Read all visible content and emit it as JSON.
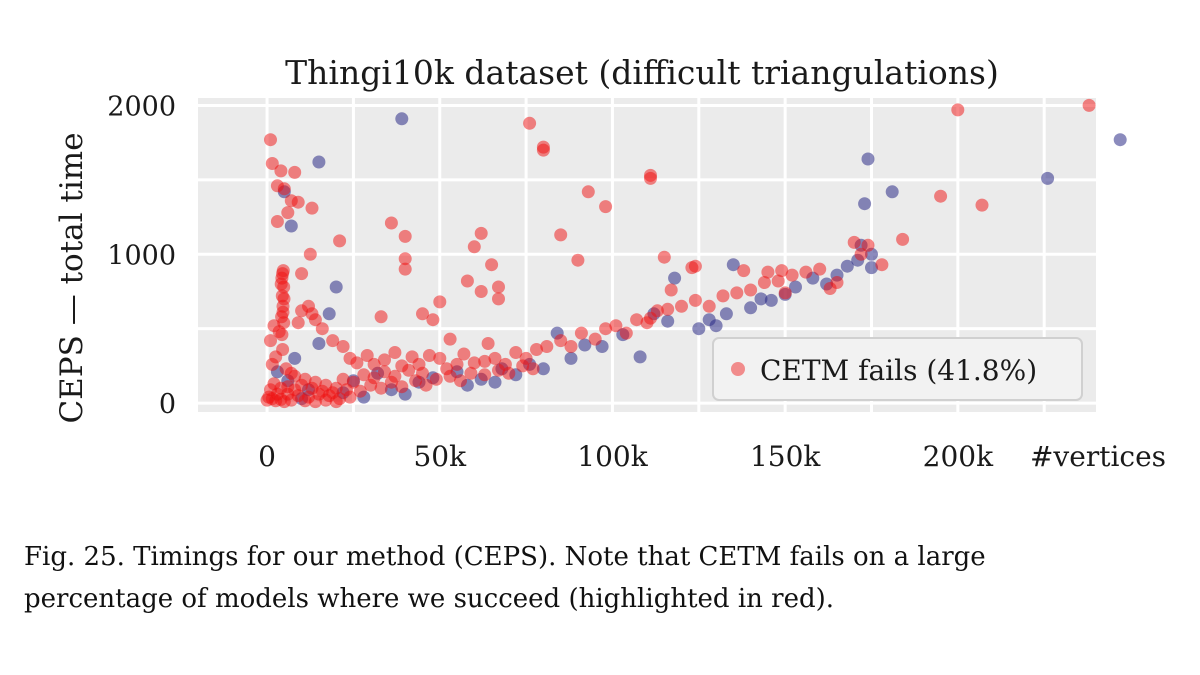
{
  "chart_data": {
    "type": "scatter",
    "title": "Thingi10k dataset (difficult triangulations)",
    "xlabel": "#vertices",
    "ylabel": "CEPS — total time",
    "xlim": [
      -20000,
      240000
    ],
    "ylim": [
      -60,
      2050
    ],
    "x_ticks": [
      {
        "value": 0,
        "label": "0"
      },
      {
        "value": 50000,
        "label": "50k"
      },
      {
        "value": 100000,
        "label": "100k"
      },
      {
        "value": 150000,
        "label": "150k"
      },
      {
        "value": 200000,
        "label": "200k"
      }
    ],
    "y_ticks": [
      {
        "value": 0,
        "label": "0"
      },
      {
        "value": 1000,
        "label": "1000"
      },
      {
        "value": 2000,
        "label": "2000"
      }
    ],
    "grid": true,
    "legend": {
      "position": "lower-right",
      "entries": [
        {
          "label": "CETM fails (41.8%)",
          "series": "CETM fails"
        }
      ]
    },
    "series": [
      {
        "name": "",
        "color": "#2c2c86",
        "points": [
          [
            39000,
            1910
          ],
          [
            15000,
            1620
          ],
          [
            7000,
            1190
          ],
          [
            20000,
            780
          ],
          [
            5000,
            1420
          ],
          [
            18000,
            600
          ],
          [
            15000,
            400
          ],
          [
            8000,
            300
          ],
          [
            3000,
            210
          ],
          [
            6000,
            150
          ],
          [
            12000,
            90
          ],
          [
            25000,
            150
          ],
          [
            32000,
            200
          ],
          [
            36000,
            90
          ],
          [
            44000,
            140
          ],
          [
            48000,
            170
          ],
          [
            55000,
            210
          ],
          [
            62000,
            160
          ],
          [
            68000,
            230
          ],
          [
            72000,
            190
          ],
          [
            76000,
            260
          ],
          [
            80000,
            230
          ],
          [
            84000,
            470
          ],
          [
            88000,
            300
          ],
          [
            92000,
            390
          ],
          [
            97000,
            380
          ],
          [
            103000,
            460
          ],
          [
            108000,
            310
          ],
          [
            112000,
            600
          ],
          [
            116000,
            550
          ],
          [
            118000,
            840
          ],
          [
            125000,
            500
          ],
          [
            128000,
            560
          ],
          [
            130000,
            520
          ],
          [
            133000,
            600
          ],
          [
            135000,
            930
          ],
          [
            140000,
            640
          ],
          [
            143000,
            700
          ],
          [
            146000,
            690
          ],
          [
            150000,
            730
          ],
          [
            153000,
            780
          ],
          [
            158000,
            840
          ],
          [
            162000,
            800
          ],
          [
            165000,
            860
          ],
          [
            168000,
            920
          ],
          [
            171000,
            960
          ],
          [
            172000,
            1060
          ],
          [
            174000,
            1640
          ],
          [
            173000,
            1340
          ],
          [
            175000,
            1000
          ],
          [
            175000,
            910
          ],
          [
            181000,
            1420
          ],
          [
            226000,
            1510
          ],
          [
            247000,
            1770
          ],
          [
            58000,
            120
          ],
          [
            66000,
            140
          ],
          [
            40000,
            60
          ],
          [
            28000,
            40
          ],
          [
            22000,
            70
          ],
          [
            10000,
            30
          ]
        ]
      },
      {
        "name": "CETM fails",
        "color": "#f01010",
        "points": [
          [
            1000,
            1770
          ],
          [
            1500,
            1610
          ],
          [
            4000,
            1560
          ],
          [
            8000,
            1550
          ],
          [
            3000,
            1460
          ],
          [
            5000,
            1440
          ],
          [
            7000,
            1360
          ],
          [
            9000,
            1350
          ],
          [
            13000,
            1310
          ],
          [
            6000,
            1280
          ],
          [
            3000,
            1220
          ],
          [
            21000,
            1090
          ],
          [
            36000,
            1210
          ],
          [
            40000,
            1120
          ],
          [
            40000,
            970
          ],
          [
            40000,
            900
          ],
          [
            33000,
            580
          ],
          [
            45000,
            600
          ],
          [
            48000,
            560
          ],
          [
            50000,
            680
          ],
          [
            53000,
            430
          ],
          [
            58000,
            820
          ],
          [
            60000,
            1050
          ],
          [
            62000,
            1140
          ],
          [
            62000,
            750
          ],
          [
            65000,
            930
          ],
          [
            67000,
            780
          ],
          [
            67000,
            700
          ],
          [
            64000,
            400
          ],
          [
            76000,
            1880
          ],
          [
            80000,
            1700
          ],
          [
            80000,
            1720
          ],
          [
            85000,
            1130
          ],
          [
            90000,
            960
          ],
          [
            93000,
            1420
          ],
          [
            98000,
            1320
          ],
          [
            111000,
            1530
          ],
          [
            111000,
            1510
          ],
          [
            111000,
            570
          ],
          [
            115000,
            980
          ],
          [
            117000,
            760
          ],
          [
            123000,
            910
          ],
          [
            124000,
            920
          ],
          [
            138000,
            890
          ],
          [
            145000,
            880
          ],
          [
            149000,
            890
          ],
          [
            150000,
            740
          ],
          [
            163000,
            770
          ],
          [
            165000,
            810
          ],
          [
            172000,
            1000
          ],
          [
            170000,
            1080
          ],
          [
            174000,
            1060
          ],
          [
            178000,
            930
          ],
          [
            184000,
            1100
          ],
          [
            195000,
            1390
          ],
          [
            200000,
            1970
          ],
          [
            207000,
            1330
          ],
          [
            238000,
            2000
          ],
          [
            9000,
            540
          ],
          [
            10000,
            620
          ],
          [
            12000,
            650
          ],
          [
            13000,
            600
          ],
          [
            14000,
            560
          ],
          [
            16000,
            500
          ],
          [
            19000,
            420
          ],
          [
            22000,
            380
          ],
          [
            24000,
            300
          ],
          [
            26000,
            270
          ],
          [
            29000,
            320
          ],
          [
            31000,
            260
          ],
          [
            34000,
            290
          ],
          [
            37000,
            340
          ],
          [
            39000,
            250
          ],
          [
            42000,
            310
          ],
          [
            44000,
            260
          ],
          [
            47000,
            320
          ],
          [
            50000,
            300
          ],
          [
            52000,
            230
          ],
          [
            55000,
            260
          ],
          [
            57000,
            330
          ],
          [
            60000,
            270
          ],
          [
            63000,
            280
          ],
          [
            66000,
            300
          ],
          [
            69000,
            260
          ],
          [
            72000,
            340
          ],
          [
            75000,
            300
          ],
          [
            78000,
            360
          ],
          [
            81000,
            380
          ],
          [
            85000,
            420
          ],
          [
            88000,
            380
          ],
          [
            91000,
            470
          ],
          [
            95000,
            430
          ],
          [
            98000,
            500
          ],
          [
            101000,
            520
          ],
          [
            104000,
            470
          ],
          [
            107000,
            560
          ],
          [
            110000,
            540
          ],
          [
            113000,
            620
          ],
          [
            116000,
            630
          ],
          [
            120000,
            650
          ],
          [
            124000,
            690
          ],
          [
            128000,
            650
          ],
          [
            132000,
            720
          ],
          [
            136000,
            740
          ],
          [
            140000,
            760
          ],
          [
            144000,
            810
          ],
          [
            148000,
            820
          ],
          [
            152000,
            860
          ],
          [
            156000,
            880
          ],
          [
            160000,
            900
          ],
          [
            2000,
            520
          ],
          [
            3500,
            480
          ],
          [
            1000,
            420
          ],
          [
            4500,
            360
          ],
          [
            2500,
            310
          ],
          [
            1500,
            260
          ],
          [
            5500,
            230
          ],
          [
            7000,
            200
          ],
          [
            8000,
            180
          ],
          [
            11000,
            160
          ],
          [
            14000,
            140
          ],
          [
            17000,
            120
          ],
          [
            20000,
            100
          ],
          [
            23000,
            90
          ],
          [
            27000,
            80
          ],
          [
            30000,
            120
          ],
          [
            33000,
            100
          ],
          [
            36000,
            140
          ],
          [
            39000,
            110
          ],
          [
            43000,
            150
          ],
          [
            46000,
            120
          ],
          [
            49000,
            160
          ],
          [
            53000,
            180
          ],
          [
            56000,
            150
          ],
          [
            59000,
            200
          ],
          [
            63000,
            190
          ],
          [
            67000,
            220
          ],
          [
            70000,
            200
          ],
          [
            74000,
            250
          ],
          [
            77000,
            230
          ],
          [
            6000,
            60
          ],
          [
            9000,
            50
          ],
          [
            12000,
            40
          ],
          [
            15000,
            60
          ],
          [
            18000,
            50
          ],
          [
            21000,
            30
          ],
          [
            24000,
            40
          ],
          [
            1000,
            90
          ],
          [
            2000,
            130
          ],
          [
            4000,
            100
          ],
          [
            3000,
            60
          ],
          [
            6000,
            110
          ],
          [
            8000,
            90
          ],
          [
            10000,
            120
          ],
          [
            13000,
            100
          ],
          [
            16000,
            80
          ],
          [
            19000,
            70
          ],
          [
            22000,
            160
          ],
          [
            25000,
            140
          ],
          [
            28000,
            190
          ],
          [
            31000,
            170
          ],
          [
            34000,
            210
          ],
          [
            37000,
            180
          ],
          [
            41000,
            220
          ],
          [
            45000,
            200
          ],
          [
            0,
            20
          ],
          [
            500,
            40
          ],
          [
            1500,
            30
          ],
          [
            2500,
            15
          ],
          [
            4000,
            25
          ],
          [
            5000,
            10
          ],
          [
            7000,
            20
          ],
          [
            11000,
            15
          ],
          [
            14000,
            10
          ],
          [
            17000,
            20
          ],
          [
            20000,
            10
          ],
          [
            4200,
            580
          ],
          [
            4600,
            650
          ],
          [
            4400,
            720
          ],
          [
            4800,
            780
          ],
          [
            4300,
            840
          ],
          [
            4500,
            870
          ],
          [
            4700,
            890
          ],
          [
            4100,
            800
          ],
          [
            4900,
            700
          ],
          [
            4600,
            610
          ],
          [
            4800,
            540
          ],
          [
            4300,
            460
          ],
          [
            10000,
            870
          ],
          [
            12500,
            1000
          ]
        ]
      }
    ]
  },
  "caption": {
    "line1": "Fig. 25.  Timings for our method (CEPS). Note that CETM  fails on a large",
    "line2": "percentage of models where we succeed (highlighted in red)."
  }
}
